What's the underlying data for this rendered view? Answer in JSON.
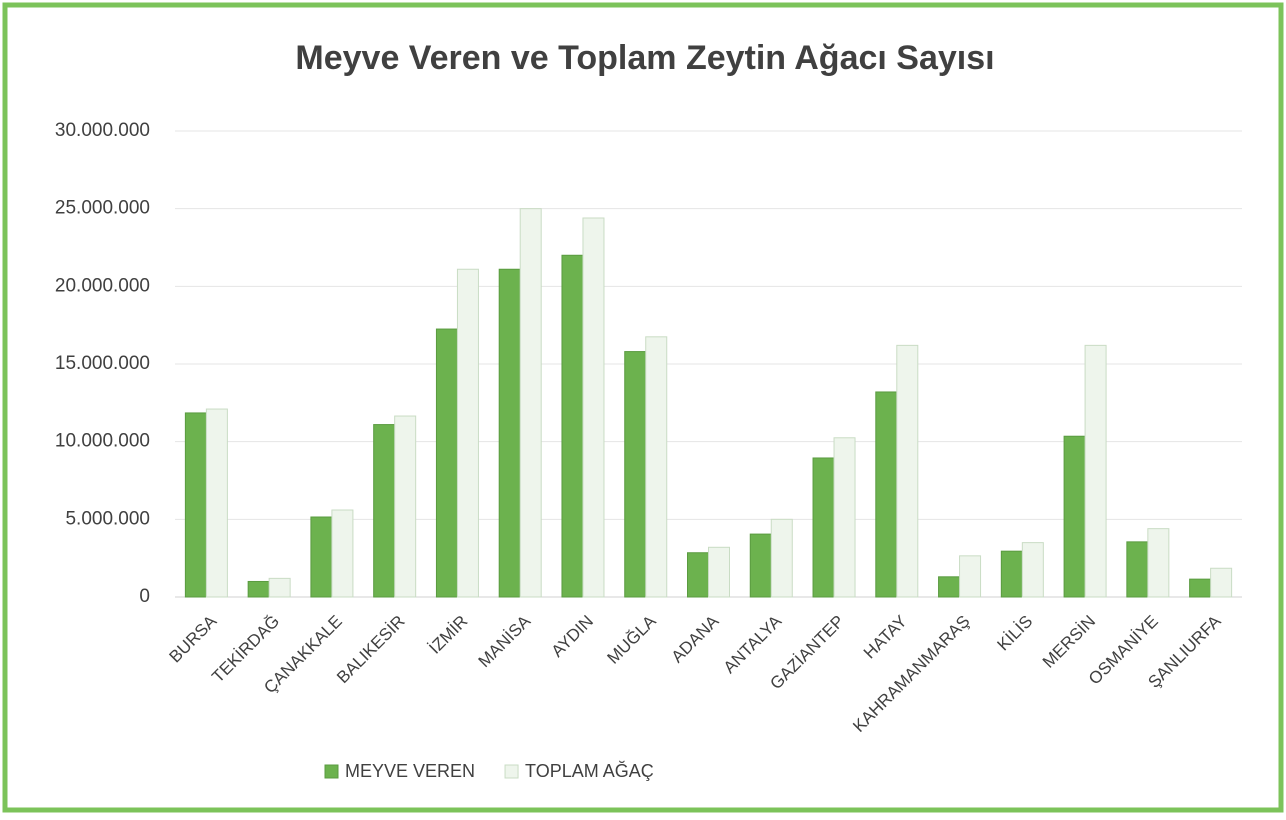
{
  "chart_data": {
    "type": "bar",
    "title": "Meyve Veren ve Toplam Zeytin Ağacı Sayısı",
    "categories": [
      "BURSA",
      "TEKİRDAĞ",
      "ÇANAKKALE",
      "BALIKESİR",
      "İZMİR",
      "MANİSA",
      "AYDIN",
      "MUĞLA",
      "ADANA",
      "ANTALYA",
      "GAZİANTEP",
      "HATAY",
      "KAHRAMANMARAŞ",
      "KİLİS",
      "MERSİN",
      "OSMANİYE",
      "ŞANLIURFA"
    ],
    "series": [
      {
        "name": "MEYVE VEREN",
        "color": "#6cb24e",
        "values": [
          11850000,
          1000000,
          5150000,
          11100000,
          17250000,
          21100000,
          22000000,
          15800000,
          2850000,
          4050000,
          8950000,
          13200000,
          1300000,
          2950000,
          10350000,
          3550000,
          1150000
        ]
      },
      {
        "name": "TOPLAM AĞAÇ",
        "color": "#eef5ec",
        "values": [
          12100000,
          1200000,
          5600000,
          11650000,
          21100000,
          25000000,
          24400000,
          16750000,
          3200000,
          5000000,
          10250000,
          16200000,
          2650000,
          3500000,
          16200000,
          4400000,
          1850000
        ]
      }
    ],
    "ylim": [
      0,
      30000000
    ],
    "yticks": [
      0,
      {
        "value": 5000000,
        "label": "5.000.000"
      },
      {
        "value": 10000000,
        "label": "10.000.000"
      },
      {
        "value": 15000000,
        "label": "15.000.000"
      },
      {
        "value": 20000000,
        "label": "20.000.000"
      },
      {
        "value": 25000000,
        "label": "25.000.000"
      },
      {
        "value": 30000000,
        "label": "30.000.000"
      }
    ],
    "grid": true,
    "legend": "bottom"
  }
}
